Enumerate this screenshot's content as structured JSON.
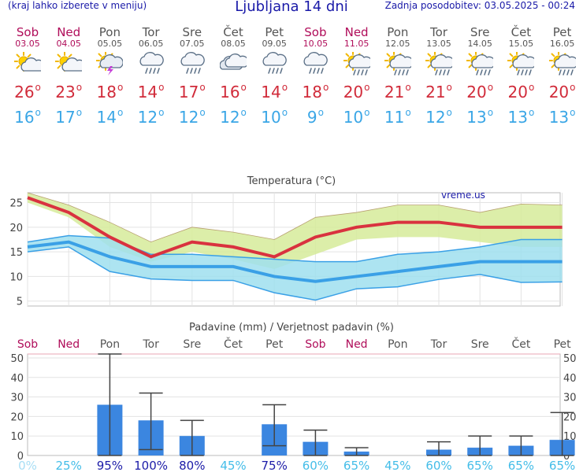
{
  "header": {
    "menu_hint": "(kraj lahko izberete v meniju)",
    "title": "Ljubljana 14 dni",
    "updated": "Zadnja posodobitev: 03.05.2025 - 00:24"
  },
  "days": [
    {
      "name": "Sob",
      "date": "03.05",
      "weekend": true,
      "icon": "sun-cloud-icon",
      "tmax": "26",
      "tmin": "16"
    },
    {
      "name": "Ned",
      "date": "04.05",
      "weekend": true,
      "icon": "sun-cloud-icon",
      "tmax": "23",
      "tmin": "17"
    },
    {
      "name": "Pon",
      "date": "05.05",
      "weekend": false,
      "icon": "thunderstorm-icon",
      "tmax": "18",
      "tmin": "14"
    },
    {
      "name": "Tor",
      "date": "06.05",
      "weekend": false,
      "icon": "cloud-rain-icon",
      "tmax": "14",
      "tmin": "12"
    },
    {
      "name": "Sre",
      "date": "07.05",
      "weekend": false,
      "icon": "cloud-rain-icon",
      "tmax": "17",
      "tmin": "12"
    },
    {
      "name": "Čet",
      "date": "08.05",
      "weekend": false,
      "icon": "cloudy-icon",
      "tmax": "16",
      "tmin": "12"
    },
    {
      "name": "Pet",
      "date": "09.05",
      "weekend": false,
      "icon": "cloud-rain-icon",
      "tmax": "14",
      "tmin": "10"
    },
    {
      "name": "Sob",
      "date": "10.05",
      "weekend": true,
      "icon": "cloud-rain-icon",
      "tmax": "18",
      "tmin": "9"
    },
    {
      "name": "Ned",
      "date": "11.05",
      "weekend": true,
      "icon": "sun-cloud-rain-icon",
      "tmax": "20",
      "tmin": "10"
    },
    {
      "name": "Pon",
      "date": "12.05",
      "weekend": false,
      "icon": "sun-cloud-rain-icon",
      "tmax": "21",
      "tmin": "11"
    },
    {
      "name": "Tor",
      "date": "13.05",
      "weekend": false,
      "icon": "sun-cloud-rain-icon",
      "tmax": "21",
      "tmin": "12"
    },
    {
      "name": "Sre",
      "date": "14.05",
      "weekend": false,
      "icon": "sun-cloud-rain-icon",
      "tmax": "20",
      "tmin": "13"
    },
    {
      "name": "Čet",
      "date": "15.05",
      "weekend": false,
      "icon": "sun-cloud-rain-icon",
      "tmax": "20",
      "tmin": "13"
    },
    {
      "name": "Pet",
      "date": "16.05",
      "weekend": false,
      "icon": "sun-cloud-rain-icon",
      "tmax": "20",
      "tmin": "13"
    }
  ],
  "chart_data": [
    {
      "type": "line",
      "title": "Temperatura (°C)",
      "watermark": "vreme.us",
      "categories": [
        "Sob",
        "Ned",
        "Pon",
        "Tor",
        "Sre",
        "Čet",
        "Pet",
        "Sob",
        "Ned",
        "Pon",
        "Tor",
        "Sre",
        "Čet",
        "Pet"
      ],
      "ylim": [
        4,
        27
      ],
      "yticks": [
        5,
        10,
        15,
        20,
        25
      ],
      "grid": true,
      "series": [
        {
          "role": "max",
          "values": [
            26,
            23,
            18,
            14,
            17,
            16,
            14,
            18,
            20,
            21,
            21,
            20,
            20,
            20
          ],
          "band_high": [
            27,
            24.5,
            21,
            17,
            20,
            19,
            17.5,
            22,
            23,
            24.5,
            24.5,
            23,
            24.7,
            24.5
          ],
          "band_low": [
            25,
            22,
            16,
            13,
            15,
            13.5,
            11.5,
            14.5,
            17.5,
            18,
            18,
            17,
            16,
            16
          ]
        },
        {
          "role": "min",
          "values": [
            16,
            17,
            14,
            12,
            12,
            12,
            10,
            9,
            10,
            11,
            12,
            13,
            13,
            13
          ],
          "band_high": [
            17,
            18.3,
            17.8,
            14.5,
            14.5,
            14,
            13.5,
            13,
            13,
            14.5,
            15,
            16,
            17.5,
            17.5
          ],
          "band_low": [
            15,
            16,
            11,
            9.5,
            9.2,
            9.2,
            6.7,
            5.2,
            7.5,
            7.9,
            9.4,
            10.4,
            8.8,
            8.9
          ]
        }
      ],
      "colors": {
        "max": "#d9323f",
        "min": "#3aa0e6",
        "max_band": "#d6eb9a",
        "min_band": "#9fdfef",
        "overlap": "#a6d6a6"
      }
    },
    {
      "type": "bar",
      "title": "Padavine (mm) / Verjetnost padavin (%)",
      "categories": [
        "Sob",
        "Ned",
        "Pon",
        "Tor",
        "Sre",
        "Čet",
        "Pet",
        "Sob",
        "Ned",
        "Pon",
        "Tor",
        "Sre",
        "Čet",
        "Pet"
      ],
      "ylim": [
        0,
        52
      ],
      "yticks": [
        0,
        10,
        20,
        30,
        40,
        50
      ],
      "values": [
        0,
        0,
        26,
        18,
        10,
        0,
        16,
        7,
        2,
        0,
        3,
        4,
        5,
        8
      ],
      "error_low": [
        0,
        0,
        0,
        3,
        0,
        0,
        5,
        0,
        0,
        0,
        0,
        0,
        0,
        0
      ],
      "error_high": [
        0,
        0,
        52,
        32,
        18,
        0,
        26,
        13,
        4,
        0,
        7,
        10,
        10,
        22
      ],
      "probability": [
        "0%",
        "25%",
        "95%",
        "100%",
        "80%",
        "45%",
        "75%",
        "60%",
        "65%",
        "45%",
        "60%",
        "65%",
        "65%",
        "65%"
      ],
      "colors": {
        "bar": "#3b86e0",
        "error": "#444444",
        "threshold_line": "#e9a4b4"
      }
    }
  ]
}
